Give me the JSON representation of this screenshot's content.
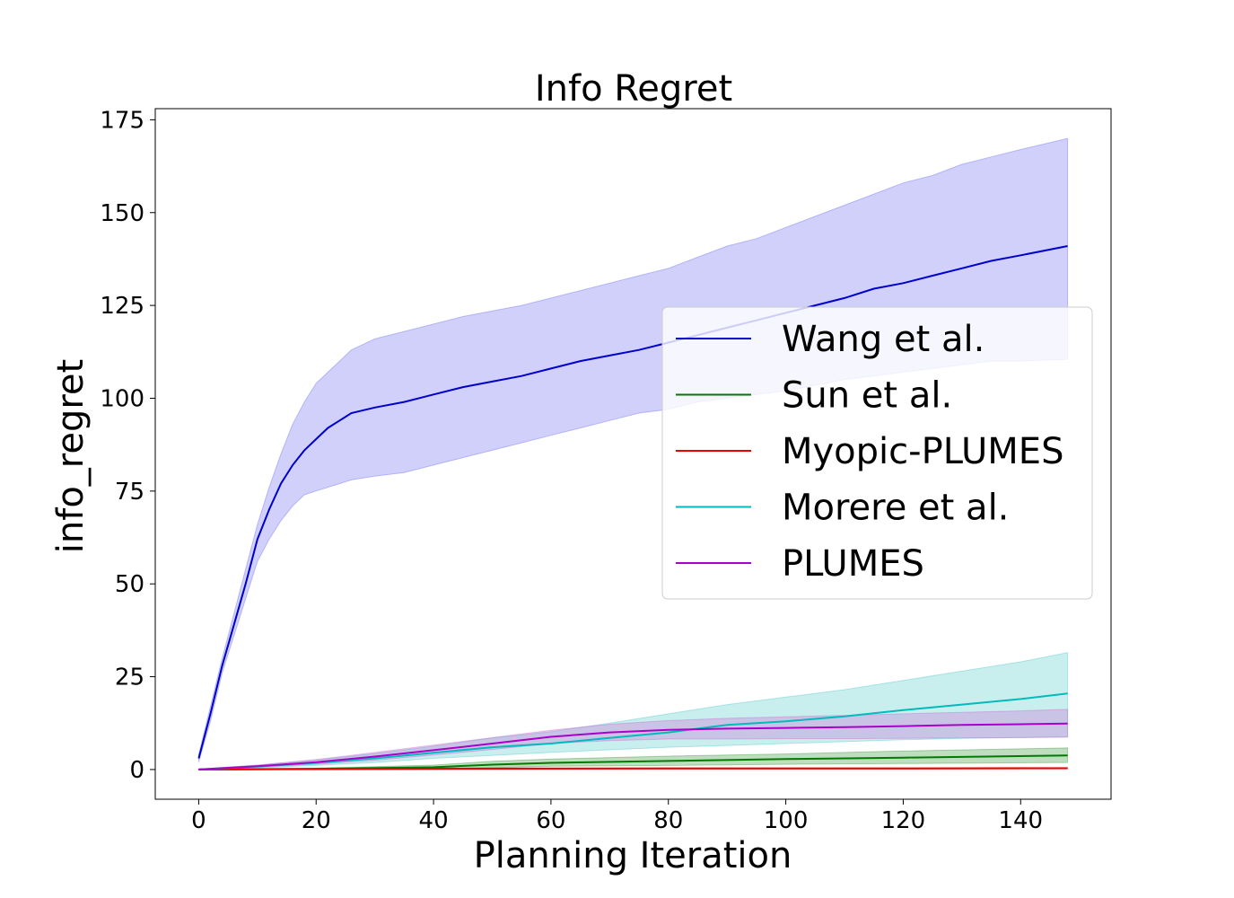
{
  "chart_data": {
    "type": "line",
    "title": "Info Regret",
    "xlabel": "Planning Iteration",
    "ylabel": "info_regret",
    "xlim": [
      -7.4,
      155.4
    ],
    "ylim": [
      -8,
      178
    ],
    "x_ticks": [
      0,
      20,
      40,
      60,
      80,
      100,
      120,
      140
    ],
    "y_ticks": [
      0,
      25,
      50,
      75,
      100,
      125,
      150,
      175
    ],
    "grid": false,
    "legend_position": "center-right",
    "series": [
      {
        "name": "Wang et al.",
        "color": "#0000cc",
        "band_color": "#4444ee",
        "points": [
          [
            0,
            3
          ],
          [
            2,
            15
          ],
          [
            4,
            28
          ],
          [
            6,
            39
          ],
          [
            8,
            50
          ],
          [
            10,
            62
          ],
          [
            12,
            70
          ],
          [
            14,
            77
          ],
          [
            16,
            82
          ],
          [
            18,
            86
          ],
          [
            20,
            89
          ],
          [
            22,
            92
          ],
          [
            24,
            94
          ],
          [
            26,
            96
          ],
          [
            30,
            97.5
          ],
          [
            35,
            99
          ],
          [
            40,
            101
          ],
          [
            45,
            103
          ],
          [
            50,
            104.5
          ],
          [
            55,
            106
          ],
          [
            60,
            108
          ],
          [
            65,
            110
          ],
          [
            70,
            111.5
          ],
          [
            75,
            113
          ],
          [
            80,
            115
          ],
          [
            85,
            117
          ],
          [
            90,
            119
          ],
          [
            95,
            121
          ],
          [
            100,
            123
          ],
          [
            105,
            125
          ],
          [
            110,
            127
          ],
          [
            115,
            129.5
          ],
          [
            120,
            131
          ],
          [
            125,
            133
          ],
          [
            130,
            135
          ],
          [
            135,
            137
          ],
          [
            140,
            138.5
          ],
          [
            148,
            141
          ]
        ],
        "upper": [
          [
            0,
            4
          ],
          [
            2,
            17
          ],
          [
            4,
            30
          ],
          [
            6,
            42
          ],
          [
            8,
            54
          ],
          [
            10,
            66
          ],
          [
            12,
            76
          ],
          [
            14,
            85
          ],
          [
            16,
            93
          ],
          [
            18,
            99
          ],
          [
            20,
            104
          ],
          [
            22,
            107
          ],
          [
            24,
            110
          ],
          [
            26,
            113
          ],
          [
            30,
            116
          ],
          [
            35,
            118
          ],
          [
            40,
            120
          ],
          [
            45,
            122
          ],
          [
            50,
            123.5
          ],
          [
            55,
            125
          ],
          [
            60,
            127
          ],
          [
            65,
            129
          ],
          [
            70,
            131
          ],
          [
            75,
            133
          ],
          [
            80,
            135
          ],
          [
            85,
            138
          ],
          [
            90,
            141
          ],
          [
            95,
            143
          ],
          [
            100,
            146
          ],
          [
            105,
            149
          ],
          [
            110,
            152
          ],
          [
            115,
            155
          ],
          [
            120,
            158
          ],
          [
            125,
            160
          ],
          [
            130,
            163
          ],
          [
            135,
            165
          ],
          [
            140,
            167
          ],
          [
            148,
            170
          ]
        ],
        "lower": [
          [
            0,
            2
          ],
          [
            2,
            13
          ],
          [
            4,
            26
          ],
          [
            6,
            36
          ],
          [
            8,
            46
          ],
          [
            10,
            56
          ],
          [
            12,
            62
          ],
          [
            14,
            67
          ],
          [
            16,
            71
          ],
          [
            18,
            74
          ],
          [
            20,
            75
          ],
          [
            22,
            76
          ],
          [
            24,
            77
          ],
          [
            26,
            78
          ],
          [
            30,
            79
          ],
          [
            35,
            80
          ],
          [
            40,
            82
          ],
          [
            45,
            84
          ],
          [
            50,
            86
          ],
          [
            55,
            88
          ],
          [
            60,
            90
          ],
          [
            65,
            92
          ],
          [
            70,
            94
          ],
          [
            75,
            96
          ],
          [
            80,
            97
          ],
          [
            85,
            99
          ],
          [
            90,
            100
          ],
          [
            95,
            101
          ],
          [
            100,
            102
          ],
          [
            105,
            103.5
          ],
          [
            110,
            105
          ],
          [
            115,
            106
          ],
          [
            120,
            107
          ],
          [
            125,
            108
          ],
          [
            130,
            109
          ],
          [
            135,
            110
          ],
          [
            140,
            110
          ],
          [
            148,
            110.5
          ]
        ]
      },
      {
        "name": "Sun et al.",
        "color": "#007a00",
        "band_color": "#007a00",
        "points": [
          [
            0,
            0
          ],
          [
            20,
            0.2
          ],
          [
            40,
            0.6
          ],
          [
            50,
            1.3
          ],
          [
            60,
            1.8
          ],
          [
            80,
            2.3
          ],
          [
            100,
            2.8
          ],
          [
            120,
            3.2
          ],
          [
            148,
            3.8
          ]
        ],
        "upper": [
          [
            0,
            0.1
          ],
          [
            20,
            0.4
          ],
          [
            40,
            1.2
          ],
          [
            50,
            2.2
          ],
          [
            60,
            2.8
          ],
          [
            80,
            3.6
          ],
          [
            100,
            4.2
          ],
          [
            120,
            5
          ],
          [
            148,
            5.8
          ]
        ],
        "lower": [
          [
            0,
            -0.1
          ],
          [
            20,
            0
          ],
          [
            40,
            0.1
          ],
          [
            50,
            0.5
          ],
          [
            60,
            0.9
          ],
          [
            80,
            1.1
          ],
          [
            100,
            1.4
          ],
          [
            120,
            1.6
          ],
          [
            148,
            1.9
          ]
        ]
      },
      {
        "name": "Myopic-PLUMES",
        "color": "#ee0000",
        "band_color": "#ee0000",
        "points": [
          [
            0,
            0
          ],
          [
            40,
            0.2
          ],
          [
            80,
            0.3
          ],
          [
            120,
            0.3
          ],
          [
            148,
            0.35
          ]
        ],
        "upper": [
          [
            0,
            0.1
          ],
          [
            40,
            0.4
          ],
          [
            80,
            0.5
          ],
          [
            120,
            0.5
          ],
          [
            148,
            0.55
          ]
        ],
        "lower": [
          [
            0,
            -0.1
          ],
          [
            40,
            0
          ],
          [
            80,
            0.1
          ],
          [
            120,
            0.1
          ],
          [
            148,
            0.15
          ]
        ]
      },
      {
        "name": "Morere et al.",
        "color": "#00bbbb",
        "band_color": "#22bbbb",
        "points": [
          [
            0,
            0
          ],
          [
            10,
            0.8
          ],
          [
            20,
            1.8
          ],
          [
            30,
            3
          ],
          [
            40,
            4.5
          ],
          [
            50,
            6
          ],
          [
            60,
            7
          ],
          [
            70,
            8.5
          ],
          [
            80,
            10
          ],
          [
            90,
            12
          ],
          [
            100,
            13
          ],
          [
            110,
            14.3
          ],
          [
            120,
            16
          ],
          [
            130,
            17.5
          ],
          [
            140,
            19
          ],
          [
            148,
            20.5
          ]
        ],
        "upper": [
          [
            0,
            0.1
          ],
          [
            10,
            1.2
          ],
          [
            20,
            2.6
          ],
          [
            30,
            4.3
          ],
          [
            40,
            6.3
          ],
          [
            50,
            8.5
          ],
          [
            60,
            10.2
          ],
          [
            70,
            12.5
          ],
          [
            80,
            15
          ],
          [
            90,
            17.5
          ],
          [
            100,
            19.5
          ],
          [
            110,
            21.5
          ],
          [
            120,
            24
          ],
          [
            130,
            26.5
          ],
          [
            140,
            29
          ],
          [
            148,
            31.5
          ]
        ],
        "lower": [
          [
            0,
            -0.1
          ],
          [
            10,
            0.4
          ],
          [
            20,
            1.1
          ],
          [
            30,
            1.9
          ],
          [
            40,
            3
          ],
          [
            50,
            3.8
          ],
          [
            60,
            4.6
          ],
          [
            70,
            5.3
          ],
          [
            80,
            6
          ],
          [
            90,
            6.5
          ],
          [
            100,
            7
          ],
          [
            110,
            7.5
          ],
          [
            120,
            8
          ],
          [
            130,
            8.4
          ],
          [
            140,
            8.6
          ],
          [
            148,
            8.8
          ]
        ]
      },
      {
        "name": "PLUMES",
        "color": "#aa00cc",
        "band_color": "#cc44cc",
        "points": [
          [
            0,
            0
          ],
          [
            10,
            0.9
          ],
          [
            20,
            2
          ],
          [
            30,
            3.5
          ],
          [
            40,
            5.2
          ],
          [
            50,
            7
          ],
          [
            60,
            8.8
          ],
          [
            70,
            10
          ],
          [
            80,
            10.7
          ],
          [
            90,
            11
          ],
          [
            100,
            11.2
          ],
          [
            110,
            11.4
          ],
          [
            120,
            11.7
          ],
          [
            130,
            12
          ],
          [
            140,
            12.2
          ],
          [
            148,
            12.4
          ]
        ],
        "upper": [
          [
            0,
            0.1
          ],
          [
            10,
            1.2
          ],
          [
            20,
            2.7
          ],
          [
            30,
            4.6
          ],
          [
            40,
            6.6
          ],
          [
            50,
            8.6
          ],
          [
            60,
            10.6
          ],
          [
            70,
            12.2
          ],
          [
            80,
            13.2
          ],
          [
            90,
            13.8
          ],
          [
            100,
            14.2
          ],
          [
            110,
            14.6
          ],
          [
            120,
            15
          ],
          [
            130,
            15.4
          ],
          [
            140,
            15.8
          ],
          [
            148,
            16.2
          ]
        ],
        "lower": [
          [
            0,
            -0.1
          ],
          [
            10,
            0.6
          ],
          [
            20,
            1.4
          ],
          [
            30,
            2.5
          ],
          [
            40,
            3.9
          ],
          [
            50,
            5.4
          ],
          [
            60,
            7
          ],
          [
            70,
            7.8
          ],
          [
            80,
            8.2
          ],
          [
            90,
            8.2
          ],
          [
            100,
            8.3
          ],
          [
            110,
            8.3
          ],
          [
            120,
            8.4
          ],
          [
            130,
            8.5
          ],
          [
            140,
            8.6
          ],
          [
            148,
            8.7
          ]
        ]
      }
    ]
  }
}
